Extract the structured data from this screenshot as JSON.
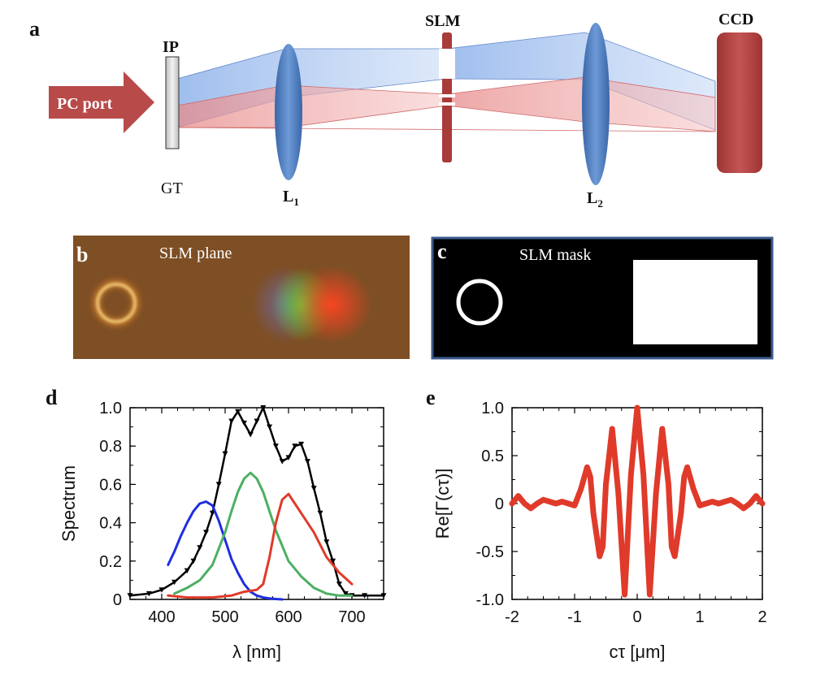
{
  "panel_a": {
    "letter": "a",
    "port_label": "PC port",
    "ip_label": "IP",
    "gt_label": "GT",
    "l1_label": "L",
    "l1_sub": "1",
    "slm_label": "SLM",
    "l2_label": "L",
    "l2_sub": "2",
    "ccd_label": "CCD",
    "colors": {
      "blue_beam": "#7fa8e8",
      "red_beam": "#e88a8a",
      "lens": "#4f7fbf",
      "slm": "#a93b3b",
      "port": "#b84a4a"
    }
  },
  "panel_b": {
    "letter": "b",
    "title": "SLM plane",
    "bg_color": "#7a4a22"
  },
  "panel_c": {
    "letter": "c",
    "title": "SLM mask",
    "border_color": "#3b5a8c"
  },
  "chart_data": [
    {
      "panel": "d",
      "type": "line",
      "xlabel": "λ [nm]",
      "ylabel": "Spectrum",
      "xlim": [
        350,
        750
      ],
      "ylim": [
        0,
        1
      ],
      "xticks": [
        "400",
        "500",
        "600",
        "700"
      ],
      "yticks": [
        "0",
        "0.2",
        "0.4",
        "0.6",
        "0.8",
        "1.0"
      ],
      "series": [
        {
          "color": "#000000",
          "style": "marker",
          "x": [
            350,
            380,
            400,
            420,
            440,
            450,
            460,
            470,
            480,
            490,
            500,
            510,
            520,
            530,
            540,
            550,
            560,
            570,
            580,
            590,
            600,
            610,
            620,
            630,
            640,
            650,
            660,
            670,
            680,
            690,
            700,
            720,
            750
          ],
          "y": [
            0.02,
            0.03,
            0.05,
            0.09,
            0.15,
            0.2,
            0.27,
            0.35,
            0.45,
            0.6,
            0.76,
            0.93,
            0.98,
            0.92,
            0.86,
            0.93,
            1.0,
            0.9,
            0.8,
            0.72,
            0.74,
            0.8,
            0.81,
            0.72,
            0.58,
            0.45,
            0.3,
            0.2,
            0.08,
            0.03,
            0.02,
            0.02,
            0.02
          ]
        },
        {
          "color": "#1f2ee0",
          "x": [
            410,
            420,
            430,
            440,
            450,
            460,
            470,
            480,
            490,
            500,
            510,
            520,
            530,
            540,
            550,
            560,
            570,
            580,
            590
          ],
          "y": [
            0.18,
            0.25,
            0.33,
            0.4,
            0.46,
            0.5,
            0.51,
            0.49,
            0.41,
            0.31,
            0.21,
            0.14,
            0.08,
            0.04,
            0.02,
            0.01,
            0.005,
            0.002,
            0.0
          ]
        },
        {
          "color": "#4caf62",
          "x": [
            420,
            440,
            460,
            480,
            500,
            510,
            520,
            530,
            540,
            550,
            560,
            570,
            580,
            590,
            600,
            620,
            640,
            660,
            680,
            700
          ],
          "y": [
            0.03,
            0.06,
            0.1,
            0.18,
            0.35,
            0.46,
            0.56,
            0.63,
            0.66,
            0.63,
            0.56,
            0.46,
            0.36,
            0.28,
            0.2,
            0.12,
            0.06,
            0.03,
            0.02,
            0.02
          ]
        },
        {
          "color": "#e03a2a",
          "x": [
            410,
            440,
            480,
            510,
            530,
            550,
            560,
            570,
            580,
            590,
            600,
            610,
            620,
            640,
            660,
            680,
            700
          ],
          "y": [
            0.02,
            0.01,
            0.01,
            0.02,
            0.04,
            0.05,
            0.08,
            0.22,
            0.4,
            0.52,
            0.55,
            0.5,
            0.45,
            0.35,
            0.22,
            0.14,
            0.08
          ]
        }
      ]
    },
    {
      "panel": "e",
      "type": "line",
      "xlabel": "cτ [μm]",
      "ylabel": "Re[Γ(cτ)]",
      "xlim": [
        -2,
        2
      ],
      "ylim": [
        -1,
        1
      ],
      "xticks": [
        "-2",
        "-1",
        "0",
        "1",
        "2"
      ],
      "yticks": [
        "-1.0",
        "-0.5",
        "0",
        "0.5",
        "1.0"
      ],
      "series": [
        {
          "color": "#e03a2a",
          "x": [
            -2.0,
            -1.9,
            -1.8,
            -1.7,
            -1.6,
            -1.5,
            -1.4,
            -1.3,
            -1.2,
            -1.1,
            -1.0,
            -0.9,
            -0.8,
            -0.75,
            -0.7,
            -0.6,
            -0.55,
            -0.5,
            -0.4,
            -0.3,
            -0.2,
            -0.1,
            0.0,
            0.1,
            0.2,
            0.3,
            0.4,
            0.5,
            0.55,
            0.6,
            0.7,
            0.75,
            0.8,
            0.9,
            1.0,
            1.1,
            1.2,
            1.3,
            1.4,
            1.5,
            1.6,
            1.7,
            1.8,
            1.9,
            2.0
          ],
          "y": [
            0.0,
            0.08,
            0.0,
            -0.05,
            0.0,
            0.04,
            0.02,
            0.0,
            0.02,
            0.0,
            -0.02,
            0.15,
            0.38,
            0.28,
            -0.1,
            -0.55,
            -0.45,
            0.2,
            0.78,
            0.1,
            -0.95,
            0.3,
            1.0,
            0.3,
            -0.95,
            0.1,
            0.78,
            0.2,
            -0.45,
            -0.55,
            -0.1,
            0.28,
            0.38,
            0.15,
            -0.02,
            0.0,
            0.02,
            0.0,
            0.02,
            0.04,
            0.0,
            -0.05,
            0.0,
            0.08,
            0.0
          ]
        }
      ]
    }
  ]
}
